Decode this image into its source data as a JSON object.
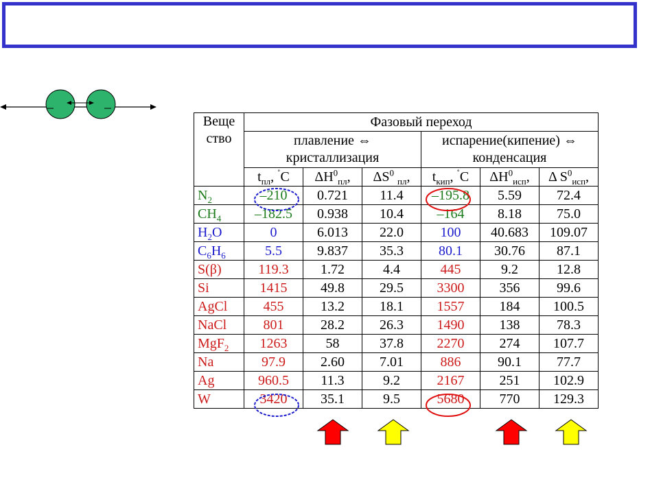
{
  "colors": {
    "title_border": "#3333cc",
    "circle_fill": "#2db36b",
    "green": "#1a7a1a",
    "blue": "#1a1acc",
    "red": "#cc1a1a",
    "arrow_red": "#ff0000",
    "arrow_yellow": "#ffff00",
    "oval_blue": "#1a1acc",
    "oval_red": "#e01010"
  },
  "header": {
    "substance": "Вещество",
    "phase_transition": "Фазовый переход",
    "melting": "плавление ⇔ кристаллизация",
    "boiling": "испарение(кипение) ⇔ конденсация",
    "t_melt": "tпл, °C",
    "dh_melt": "ΔH0пл,",
    "ds_melt": "ΔS0 пл,",
    "t_boil": "tкип, °C",
    "dh_boil": "ΔH0исп,",
    "ds_boil": "Δ S0исп,"
  },
  "rows": [
    {
      "name": "N2",
      "color": "green",
      "t_melt": "–210",
      "dh_melt": "0.721",
      "ds_melt": "11.4",
      "t_boil": "–195.8",
      "dh_boil": "5.59",
      "ds_boil": "72.4"
    },
    {
      "name": "CH4",
      "color": "green",
      "t_melt": "–182.5",
      "dh_melt": "0.938",
      "ds_melt": "10.4",
      "t_boil": "–164",
      "dh_boil": "8.18",
      "ds_boil": "75.0"
    },
    {
      "name": "H2O",
      "color": "blue",
      "t_melt": "0",
      "dh_melt": "6.013",
      "ds_melt": "22.0",
      "t_boil": "100",
      "dh_boil": "40.683",
      "ds_boil": "109.07"
    },
    {
      "name": "C6H6",
      "color": "blue",
      "t_melt": "5.5",
      "dh_melt": "9.837",
      "ds_melt": "35.3",
      "t_boil": "80.1",
      "dh_boil": "30.76",
      "ds_boil": "87.1"
    },
    {
      "name": "S(β)",
      "color": "red",
      "t_melt": "119.3",
      "dh_melt": "1.72",
      "ds_melt": "4.4",
      "t_boil": "445",
      "dh_boil": "9.2",
      "ds_boil": "12.8"
    },
    {
      "name": "Si",
      "color": "red",
      "t_melt": "1415",
      "dh_melt": "49.8",
      "ds_melt": "29.5",
      "t_boil": "3300",
      "dh_boil": "356",
      "ds_boil": "99.6"
    },
    {
      "name": "AgCl",
      "color": "red",
      "t_melt": "455",
      "dh_melt": "13.2",
      "ds_melt": "18.1",
      "t_boil": "1557",
      "dh_boil": "184",
      "ds_boil": "100.5"
    },
    {
      "name": "NaCl",
      "color": "red",
      "t_melt": "801",
      "dh_melt": "28.2",
      "ds_melt": "26.3",
      "t_boil": "1490",
      "dh_boil": "138",
      "ds_boil": "78.3"
    },
    {
      "name": "MgF2",
      "color": "red",
      "t_melt": "1263",
      "dh_melt": "58",
      "ds_melt": "37.8",
      "t_boil": "2270",
      "dh_boil": "274",
      "ds_boil": "107.7"
    },
    {
      "name": "Na",
      "color": "red",
      "t_melt": "97.9",
      "dh_melt": "2.60",
      "ds_melt": "7.01",
      "t_boil": "886",
      "dh_boil": "90.1",
      "ds_boil": "77.7"
    },
    {
      "name": "Ag",
      "color": "red",
      "t_melt": "960.5",
      "dh_melt": "11.3",
      "ds_melt": "9.2",
      "t_boil": "2167",
      "dh_boil": "251",
      "ds_boil": "102.9"
    },
    {
      "name": "W",
      "color": "red",
      "t_melt": "3420",
      "dh_melt": "35.1",
      "ds_melt": "9.5",
      "t_boil": "5680",
      "dh_boil": "770",
      "ds_boil": "129.3"
    }
  ]
}
